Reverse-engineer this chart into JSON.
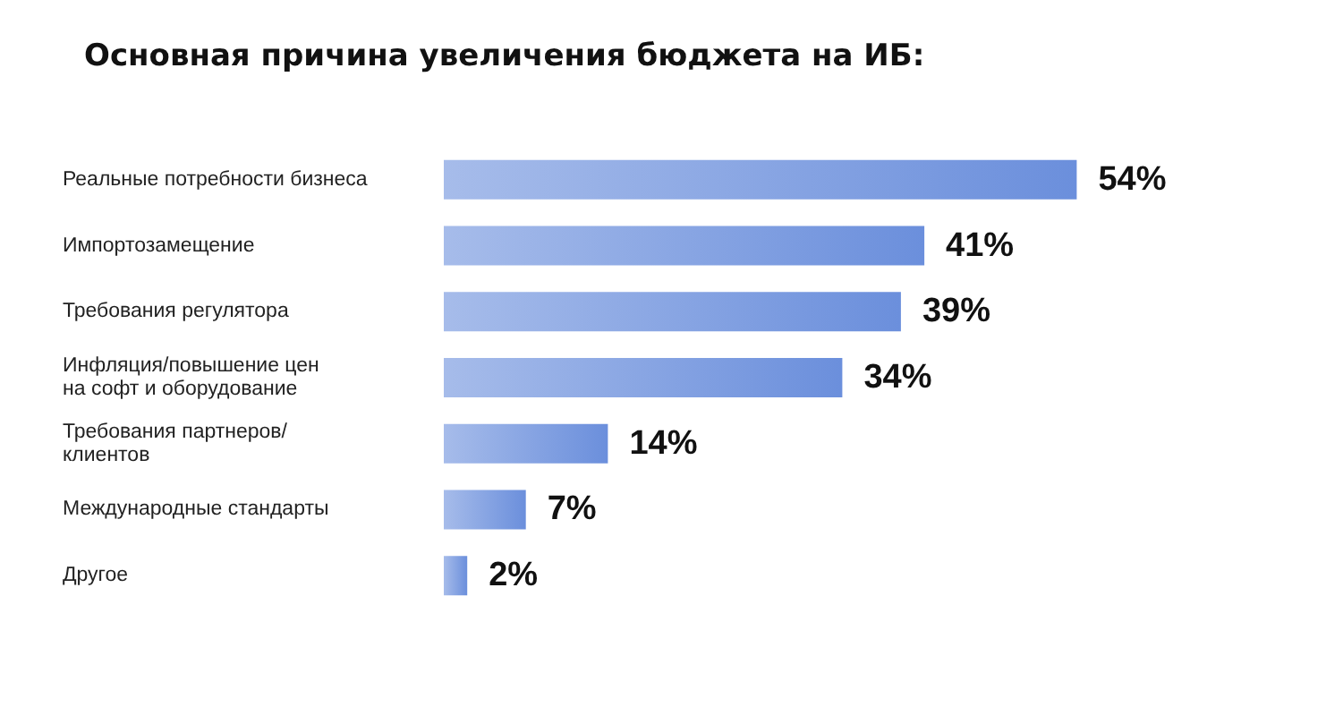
{
  "chart_data": {
    "type": "bar",
    "orientation": "horizontal",
    "title": "Основная причина увеличения бюджета на ИБ:",
    "categories": [
      "Реальные потребности бизнеса",
      "Импортозамещение",
      "Требования регулятора",
      "Инфляция/повышение цен\nна софт и оборудование",
      "Требования партнеров/\nклиентов",
      "Международные стандарты",
      "Другое"
    ],
    "values": [
      54,
      41,
      39,
      34,
      14,
      7,
      2
    ],
    "value_labels": [
      "54%",
      "41%",
      "39%",
      "34%",
      "14%",
      "7%",
      "2%"
    ],
    "color": "#6b8fdc",
    "grid": false
  }
}
